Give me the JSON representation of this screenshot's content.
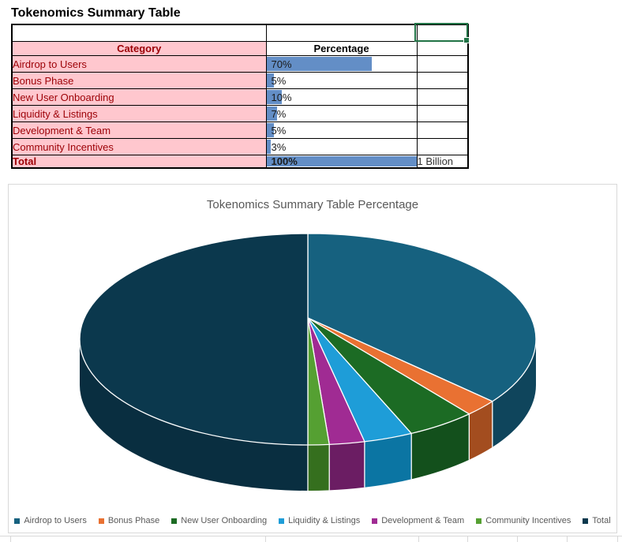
{
  "sheet_title": "Tokenomics Summary Table",
  "table": {
    "headers": {
      "category": "Category",
      "percentage": "Percentage"
    },
    "rows": [
      {
        "category": "Airdrop to Users",
        "percentage": "70%",
        "value": 70
      },
      {
        "category": "Bonus Phase",
        "percentage": "5%",
        "value": 5
      },
      {
        "category": "New User Onboarding",
        "percentage": "10%",
        "value": 10
      },
      {
        "category": "Liquidity & Listings",
        "percentage": "7%",
        "value": 7
      },
      {
        "category": "Development & Team",
        "percentage": "5%",
        "value": 5
      },
      {
        "category": "Community Incentives",
        "percentage": "3%",
        "value": 3
      }
    ],
    "total_row": {
      "category": "Total",
      "percentage": "100%",
      "value": 100,
      "supply_note": "1 Billion"
    }
  },
  "chart_data": {
    "type": "pie",
    "projection": "3d",
    "title": "Tokenomics Summary Table Percentage",
    "categories": [
      "Airdrop to Users",
      "Bonus Phase",
      "New User Onboarding",
      "Liquidity & Listings",
      "Development & Team",
      "Community Incentives",
      "Total"
    ],
    "values": [
      70,
      5,
      10,
      7,
      5,
      3,
      100
    ],
    "colors": [
      "#16617F",
      "#E97132",
      "#1C6B24",
      "#1E9DD8",
      "#A02B93",
      "#55A032",
      "#0B384D"
    ],
    "side_colors": [
      "#0F455C",
      "#A34D1F",
      "#13501C",
      "#0B75A3",
      "#6B1D63",
      "#356F1E",
      "#092E40"
    ],
    "legend_position": "bottom",
    "start_angle_deg": 0,
    "direction": "clockwise"
  },
  "colors": {
    "category_bg": "#FFC7CE",
    "category_text": "#9C0006",
    "data_bar": "#638EC6",
    "selection": "#217346",
    "chart_text": "#595959"
  }
}
